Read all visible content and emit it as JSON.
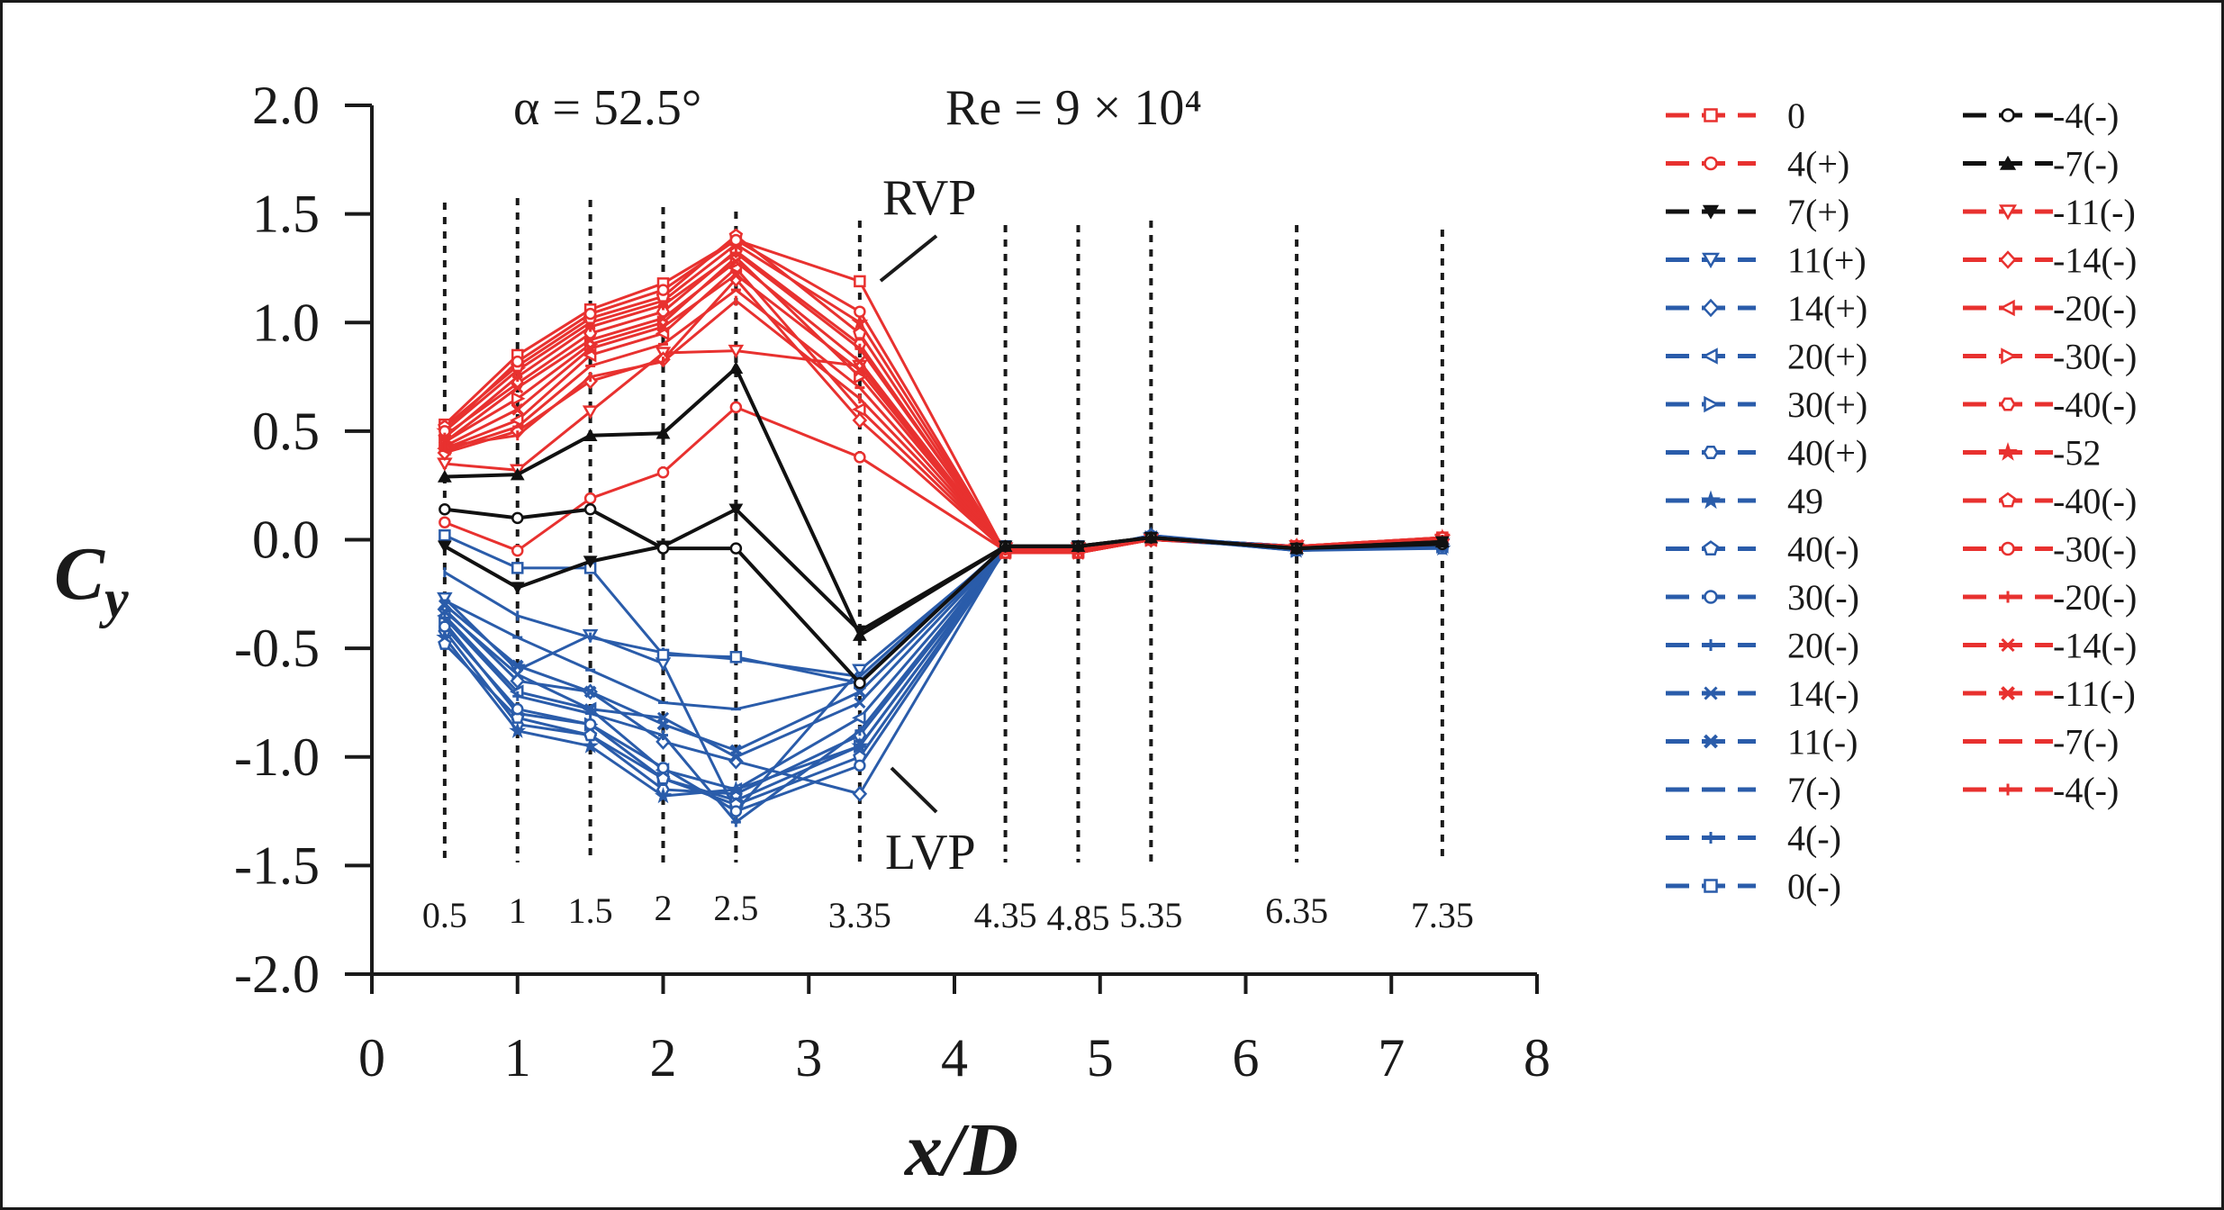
{
  "chart_data": {
    "type": "line",
    "xlabel": "x/D",
    "ylabel": "Cy",
    "xlim": [
      0,
      8
    ],
    "ylim": [
      -2.0,
      2.0
    ],
    "x_ticks": [
      "0",
      "1",
      "2",
      "3",
      "4",
      "5",
      "6",
      "7",
      "8"
    ],
    "y_ticks": [
      "2.0",
      "1.5",
      "1.0",
      "0.5",
      "0.0",
      "-0.5",
      "-1.0",
      "-1.5",
      "-2.0"
    ],
    "annotations": {
      "alpha": "α = 52.5°",
      "re": "Re = 9 × 10⁴",
      "rvp": "RVP",
      "lvp": "LVP"
    },
    "stations": [
      {
        "x": 0.5,
        "label": "0.5"
      },
      {
        "x": 1,
        "label": "1"
      },
      {
        "x": 1.5,
        "label": "1.5"
      },
      {
        "x": 2,
        "label": "2"
      },
      {
        "x": 2.5,
        "label": "2.5"
      },
      {
        "x": 3.35,
        "label": "3.35"
      },
      {
        "x": 4.35,
        "label": "4.35"
      },
      {
        "x": 4.85,
        "label": "4.85"
      },
      {
        "x": 5.35,
        "label": "5.35"
      },
      {
        "x": 6.35,
        "label": "6.35"
      },
      {
        "x": 7.35,
        "label": "7.35"
      }
    ],
    "x": [
      0.5,
      1,
      1.5,
      2,
      2.5,
      3.35,
      4.35,
      4.85,
      5.35,
      6.35,
      7.35
    ],
    "colors": {
      "red": "#e8312f",
      "black": "#111111",
      "blue": "#2a5caa"
    },
    "series": [
      {
        "name": "0",
        "color": "red",
        "marker": "square",
        "values": [
          0.53,
          0.85,
          1.06,
          1.18,
          1.38,
          1.19,
          -0.06,
          -0.06,
          0.0,
          -0.03,
          0.01
        ]
      },
      {
        "name": "4(+)",
        "color": "red",
        "marker": "circle",
        "values": [
          0.08,
          -0.05,
          0.19,
          0.31,
          0.61,
          0.38,
          -0.05,
          -0.05,
          0.0,
          -0.03,
          0.0
        ]
      },
      {
        "name": "7(+)",
        "color": "black",
        "marker": "tri-down",
        "values": [
          -0.03,
          -0.22,
          -0.1,
          -0.03,
          0.14,
          -0.42,
          -0.03,
          -0.03,
          0.01,
          -0.04,
          -0.01
        ]
      },
      {
        "name": "11(+)",
        "color": "blue",
        "marker": "tri-down",
        "values": [
          -0.27,
          -0.6,
          -0.44,
          -0.57,
          -1.25,
          -0.6,
          -0.04,
          -0.04,
          0.0,
          -0.03,
          -0.02
        ]
      },
      {
        "name": "14(+)",
        "color": "blue",
        "marker": "diamond",
        "values": [
          -0.32,
          -0.65,
          -0.7,
          -0.93,
          -1.02,
          -1.17,
          -0.04,
          -0.05,
          0.0,
          -0.04,
          -0.02
        ]
      },
      {
        "name": "20(+)",
        "color": "blue",
        "marker": "tri-left",
        "values": [
          -0.35,
          -0.7,
          -0.78,
          -1.06,
          -1.15,
          -0.82,
          -0.04,
          -0.05,
          0.01,
          -0.04,
          -0.03
        ]
      },
      {
        "name": "30(+)",
        "color": "blue",
        "marker": "tri-right",
        "values": [
          -0.38,
          -0.8,
          -0.85,
          -1.1,
          -1.2,
          -0.95,
          -0.05,
          -0.05,
          0.01,
          -0.05,
          -0.03
        ]
      },
      {
        "name": "40(+)",
        "color": "blue",
        "marker": "hexagon",
        "values": [
          -0.42,
          -0.85,
          -0.9,
          -1.15,
          -1.17,
          -0.9,
          -0.05,
          -0.05,
          0.01,
          -0.05,
          -0.03
        ]
      },
      {
        "name": "49",
        "color": "blue",
        "marker": "star",
        "values": [
          -0.45,
          -0.88,
          -0.95,
          -1.18,
          -1.15,
          -0.95,
          -0.05,
          -0.05,
          0.02,
          -0.05,
          -0.04
        ]
      },
      {
        "name": "40(-)",
        "color": "blue",
        "marker": "pentagon",
        "values": [
          -0.48,
          -0.82,
          -0.9,
          -1.1,
          -1.22,
          -1.0,
          -0.05,
          -0.05,
          0.02,
          -0.04,
          -0.04
        ]
      },
      {
        "name": "30(-)",
        "color": "blue",
        "marker": "circle",
        "values": [
          -0.4,
          -0.78,
          -0.85,
          -1.05,
          -1.25,
          -1.04,
          -0.05,
          -0.04,
          0.01,
          -0.04,
          -0.03
        ]
      },
      {
        "name": "20(-)",
        "color": "blue",
        "marker": "plus",
        "values": [
          -0.36,
          -0.72,
          -0.8,
          -0.9,
          -1.3,
          -0.88,
          -0.04,
          -0.04,
          0.01,
          -0.04,
          -0.03
        ]
      },
      {
        "name": "14(-)",
        "color": "blue",
        "marker": "x",
        "values": [
          -0.33,
          -0.62,
          -0.78,
          -0.82,
          -1.0,
          -0.75,
          -0.04,
          -0.04,
          0.01,
          -0.04,
          -0.03
        ]
      },
      {
        "name": "11(-)",
        "color": "blue",
        "marker": "xsquare",
        "values": [
          -0.3,
          -0.58,
          -0.7,
          -0.85,
          -0.97,
          -0.7,
          -0.04,
          -0.04,
          0.01,
          -0.03,
          -0.03
        ]
      },
      {
        "name": "7(-)",
        "color": "blue",
        "marker": "dash",
        "values": [
          -0.28,
          -0.45,
          -0.6,
          -0.75,
          -0.78,
          -0.65,
          -0.04,
          -0.04,
          0.01,
          -0.03,
          -0.02
        ]
      },
      {
        "name": "4(-)",
        "color": "blue",
        "marker": "bar",
        "values": [
          -0.15,
          -0.35,
          -0.45,
          -0.52,
          -0.55,
          -0.63,
          -0.03,
          -0.03,
          0.01,
          -0.03,
          -0.02
        ]
      },
      {
        "name": "0(-)",
        "color": "blue",
        "marker": "square",
        "values": [
          0.02,
          -0.13,
          -0.13,
          -0.53,
          -0.54,
          -0.66,
          -0.03,
          -0.03,
          0.01,
          -0.03,
          -0.02
        ]
      },
      {
        "name": "-4(-)",
        "color": "black",
        "marker": "circle",
        "values": [
          0.14,
          0.1,
          0.14,
          -0.04,
          -0.04,
          -0.66,
          -0.03,
          -0.03,
          0.01,
          -0.04,
          -0.02
        ]
      },
      {
        "name": "-7(-)",
        "color": "black",
        "marker": "tri-up",
        "values": [
          0.29,
          0.3,
          0.48,
          0.49,
          0.79,
          -0.44,
          -0.03,
          -0.03,
          0.01,
          -0.04,
          -0.01
        ]
      },
      {
        "name": "-11(-)",
        "color": "red",
        "marker": "tri-down",
        "values": [
          0.35,
          0.32,
          0.59,
          0.86,
          0.87,
          0.8,
          -0.04,
          -0.04,
          0.0,
          -0.03,
          0.0
        ]
      },
      {
        "name": "-14(-)",
        "color": "red",
        "marker": "diamond",
        "values": [
          0.4,
          0.5,
          0.73,
          0.83,
          1.2,
          0.55,
          -0.05,
          -0.05,
          0.0,
          -0.03,
          0.0
        ]
      },
      {
        "name": "-20(-)",
        "color": "red",
        "marker": "tri-left",
        "values": [
          0.42,
          0.55,
          0.85,
          0.95,
          1.25,
          0.6,
          -0.05,
          -0.05,
          0.0,
          -0.03,
          0.0
        ]
      },
      {
        "name": "-30(-)",
        "color": "red",
        "marker": "tri-right",
        "values": [
          0.45,
          0.65,
          0.9,
          1.0,
          1.3,
          0.75,
          -0.05,
          -0.05,
          0.0,
          -0.03,
          0.0
        ]
      },
      {
        "name": "-40(-)",
        "color": "red",
        "marker": "hexagon",
        "values": [
          0.48,
          0.72,
          0.95,
          1.05,
          1.33,
          0.9,
          -0.06,
          -0.06,
          0.0,
          -0.03,
          0.0
        ]
      },
      {
        "name": "-52",
        "color": "red",
        "marker": "star",
        "values": [
          0.5,
          0.78,
          1.0,
          1.1,
          1.36,
          1.0,
          -0.06,
          -0.06,
          0.0,
          -0.03,
          0.01
        ]
      },
      {
        "name": "-40(-)",
        "color": "red",
        "marker": "pentagon",
        "values": [
          0.52,
          0.8,
          1.02,
          1.12,
          1.4,
          0.95,
          -0.06,
          -0.06,
          0.0,
          -0.03,
          0.01
        ]
      },
      {
        "name": "-30(-)",
        "color": "red",
        "marker": "circle",
        "values": [
          0.5,
          0.82,
          1.04,
          1.15,
          1.38,
          1.05,
          -0.06,
          -0.06,
          0.0,
          -0.03,
          0.01
        ]
      },
      {
        "name": "-20(-)",
        "color": "red",
        "marker": "plus",
        "values": [
          0.47,
          0.75,
          0.98,
          1.08,
          1.32,
          0.88,
          -0.05,
          -0.06,
          0.0,
          -0.03,
          0.0
        ]
      },
      {
        "name": "-14(-)",
        "color": "red",
        "marker": "x",
        "values": [
          0.45,
          0.7,
          0.92,
          1.02,
          1.28,
          0.82,
          -0.05,
          -0.05,
          0.0,
          -0.03,
          0.0
        ]
      },
      {
        "name": "-11(-)",
        "color": "red",
        "marker": "xsquare",
        "values": [
          0.43,
          0.6,
          0.88,
          0.98,
          1.22,
          0.78,
          -0.05,
          -0.05,
          0.0,
          -0.03,
          0.0
        ]
      },
      {
        "name": "-7(-)",
        "color": "red",
        "marker": "dash",
        "values": [
          0.41,
          0.52,
          0.8,
          0.9,
          1.15,
          0.7,
          -0.05,
          -0.05,
          0.0,
          -0.03,
          0.0
        ]
      },
      {
        "name": "-4(-)",
        "color": "red",
        "marker": "bar",
        "values": [
          0.43,
          0.48,
          0.75,
          0.82,
          1.1,
          0.65,
          -0.05,
          -0.05,
          0.0,
          -0.03,
          0.0
        ]
      }
    ]
  }
}
